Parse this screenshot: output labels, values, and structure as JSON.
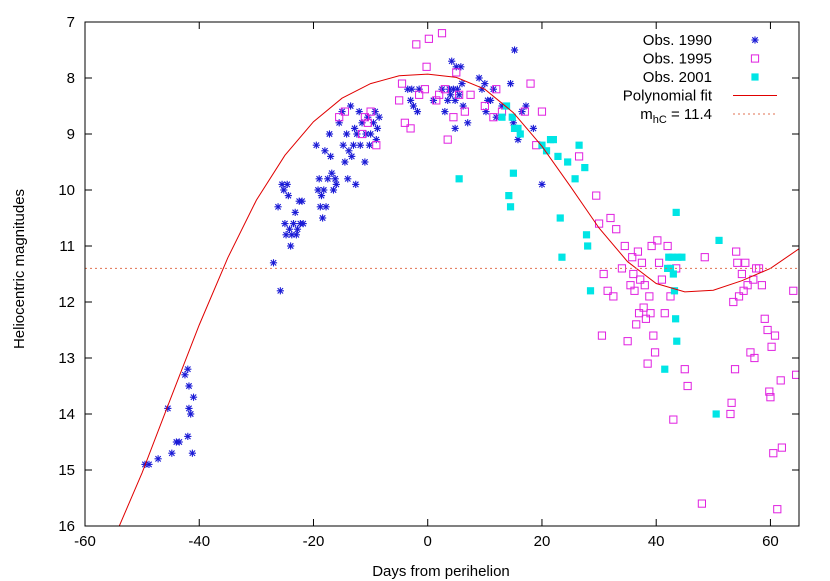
{
  "chart_data": {
    "type": "scatter",
    "title": "",
    "xlabel": "Days from perihelion",
    "ylabel": "Heliocentric magnitudes",
    "xlim": [
      -60,
      65
    ],
    "ylim": [
      16,
      7
    ],
    "y_axis_inverted": true,
    "x_ticks": [
      -60,
      -40,
      -20,
      0,
      20,
      40,
      60
    ],
    "y_ticks": [
      7,
      8,
      9,
      10,
      11,
      12,
      13,
      14,
      15,
      16
    ],
    "grid": false,
    "legend_position": "top-right",
    "legend_suffix": "hC",
    "series": [
      {
        "name": "Obs. 1990",
        "marker": "asterisk",
        "color": "#1a1ad6",
        "points": [
          [
            -49.5,
            14.9
          ],
          [
            -48.8,
            14.9
          ],
          [
            -47.2,
            14.8
          ],
          [
            -45.5,
            13.9
          ],
          [
            -44.8,
            14.7
          ],
          [
            -44.0,
            14.5
          ],
          [
            -43.5,
            14.5
          ],
          [
            -42.5,
            13.3
          ],
          [
            -42.0,
            13.2
          ],
          [
            -42.0,
            14.4
          ],
          [
            -41.8,
            13.5
          ],
          [
            -41.8,
            13.9
          ],
          [
            -41.5,
            14.0
          ],
          [
            -41.2,
            14.7
          ],
          [
            -41.0,
            13.7
          ],
          [
            -27.0,
            11.3
          ],
          [
            -26.2,
            10.3
          ],
          [
            -25.8,
            11.8
          ],
          [
            -25.5,
            9.9
          ],
          [
            -25.2,
            10.0
          ],
          [
            -25.0,
            10.6
          ],
          [
            -24.8,
            10.8
          ],
          [
            -24.6,
            9.9
          ],
          [
            -24.4,
            10.1
          ],
          [
            -24.2,
            10.7
          ],
          [
            -24.0,
            11.0
          ],
          [
            -23.8,
            10.8
          ],
          [
            -23.5,
            10.6
          ],
          [
            -23.2,
            10.4
          ],
          [
            -23.0,
            10.8
          ],
          [
            -22.8,
            10.7
          ],
          [
            -22.5,
            10.2
          ],
          [
            -22.3,
            10.6
          ],
          [
            -22.0,
            10.2
          ],
          [
            -21.8,
            10.6
          ],
          [
            -19.5,
            9.2
          ],
          [
            -19.2,
            10.0
          ],
          [
            -19.0,
            9.8
          ],
          [
            -18.8,
            10.3
          ],
          [
            -18.6,
            10.1
          ],
          [
            -18.4,
            10.5
          ],
          [
            -18.2,
            10.0
          ],
          [
            -18.0,
            9.3
          ],
          [
            -17.8,
            10.3
          ],
          [
            -17.5,
            9.8
          ],
          [
            -17.2,
            9.0
          ],
          [
            -17.0,
            9.4
          ],
          [
            -16.8,
            9.7
          ],
          [
            -16.5,
            10.0
          ],
          [
            -16.2,
            9.8
          ],
          [
            -16.0,
            9.9
          ],
          [
            -15.5,
            8.8
          ],
          [
            -15.0,
            8.6
          ],
          [
            -14.8,
            9.2
          ],
          [
            -14.5,
            9.5
          ],
          [
            -14.2,
            9.0
          ],
          [
            -14.0,
            9.8
          ],
          [
            -13.8,
            9.3
          ],
          [
            -13.5,
            8.5
          ],
          [
            -13.3,
            9.4
          ],
          [
            -13.0,
            9.2
          ],
          [
            -12.8,
            8.9
          ],
          [
            -12.6,
            9.9
          ],
          [
            -12.4,
            9.0
          ],
          [
            -12.0,
            8.6
          ],
          [
            -11.8,
            9.2
          ],
          [
            -11.5,
            8.8
          ],
          [
            -11.0,
            9.5
          ],
          [
            -10.8,
            9.0
          ],
          [
            -10.5,
            8.7
          ],
          [
            -10.2,
            9.2
          ],
          [
            -10.0,
            9.0
          ],
          [
            -9.5,
            8.8
          ],
          [
            -9.2,
            8.6
          ],
          [
            -9.0,
            9.1
          ],
          [
            -8.8,
            8.9
          ],
          [
            -8.5,
            8.7
          ],
          [
            -3.5,
            8.2
          ],
          [
            -3.0,
            8.4
          ],
          [
            -2.8,
            8.2
          ],
          [
            -2.5,
            8.5
          ],
          [
            -1.8,
            8.6
          ],
          [
            -1.5,
            8.2
          ],
          [
            1.0,
            8.4
          ],
          [
            2.5,
            8.2
          ],
          [
            3.0,
            8.6
          ],
          [
            3.5,
            8.4
          ],
          [
            3.8,
            8.2
          ],
          [
            4.0,
            8.3
          ],
          [
            4.2,
            7.7
          ],
          [
            4.5,
            8.2
          ],
          [
            4.8,
            8.4
          ],
          [
            5.0,
            7.8
          ],
          [
            5.2,
            8.2
          ],
          [
            5.5,
            8.3
          ],
          [
            5.8,
            7.8
          ],
          [
            6.0,
            8.1
          ],
          [
            6.2,
            8.5
          ],
          [
            7.0,
            8.8
          ],
          [
            4.8,
            8.9
          ],
          [
            9.0,
            8.0
          ],
          [
            9.5,
            8.2
          ],
          [
            10.0,
            8.1
          ],
          [
            10.2,
            8.6
          ],
          [
            10.5,
            8.4
          ],
          [
            11.0,
            8.4
          ],
          [
            11.5,
            8.2
          ],
          [
            12.0,
            8.7
          ],
          [
            13.0,
            8.5
          ],
          [
            14.5,
            8.1
          ],
          [
            15.0,
            8.8
          ],
          [
            15.2,
            7.5
          ],
          [
            15.5,
            8.9
          ],
          [
            15.8,
            9.1
          ],
          [
            16.5,
            8.6
          ],
          [
            17.2,
            8.5
          ],
          [
            18.5,
            8.9
          ],
          [
            20.0,
            9.9
          ]
        ]
      },
      {
        "name": "Obs. 1995",
        "marker": "open-square",
        "color": "#e020e0",
        "points": [
          [
            -15.5,
            8.7
          ],
          [
            -14.5,
            8.6
          ],
          [
            -11.5,
            9.0
          ],
          [
            -11.0,
            8.7
          ],
          [
            -10.5,
            8.8
          ],
          [
            -10.0,
            8.6
          ],
          [
            -9.0,
            9.2
          ],
          [
            -5.0,
            8.4
          ],
          [
            -4.5,
            8.1
          ],
          [
            -4.0,
            8.8
          ],
          [
            -3.0,
            8.9
          ],
          [
            -2.0,
            7.4
          ],
          [
            -1.5,
            8.3
          ],
          [
            -0.5,
            8.2
          ],
          [
            -0.2,
            7.8
          ],
          [
            0.2,
            7.3
          ],
          [
            1.5,
            8.4
          ],
          [
            2.0,
            8.3
          ],
          [
            2.5,
            7.2
          ],
          [
            3.0,
            8.2
          ],
          [
            3.5,
            9.1
          ],
          [
            4.5,
            8.7
          ],
          [
            5.0,
            7.9
          ],
          [
            5.5,
            8.3
          ],
          [
            6.5,
            8.6
          ],
          [
            7.5,
            8.3
          ],
          [
            10.0,
            8.5
          ],
          [
            11.5,
            8.7
          ],
          [
            12.0,
            8.2
          ],
          [
            13.0,
            8.6
          ],
          [
            17.0,
            8.6
          ],
          [
            18.0,
            8.1
          ],
          [
            19.0,
            9.2
          ],
          [
            20.0,
            8.6
          ],
          [
            26.5,
            9.4
          ],
          [
            29.5,
            10.1
          ],
          [
            30.0,
            10.6
          ],
          [
            30.5,
            12.6
          ],
          [
            30.8,
            11.5
          ],
          [
            31.5,
            11.8
          ],
          [
            32.0,
            10.5
          ],
          [
            32.5,
            11.9
          ],
          [
            33.0,
            10.7
          ],
          [
            34.0,
            11.4
          ],
          [
            34.5,
            11.0
          ],
          [
            35.0,
            12.7
          ],
          [
            35.5,
            11.7
          ],
          [
            35.8,
            11.2
          ],
          [
            36.0,
            11.5
          ],
          [
            36.2,
            11.8
          ],
          [
            36.5,
            12.4
          ],
          [
            36.8,
            11.1
          ],
          [
            37.0,
            12.2
          ],
          [
            37.2,
            11.6
          ],
          [
            37.5,
            11.3
          ],
          [
            37.8,
            12.1
          ],
          [
            38.0,
            11.7
          ],
          [
            38.2,
            12.3
          ],
          [
            38.5,
            13.1
          ],
          [
            38.8,
            11.9
          ],
          [
            39.0,
            12.2
          ],
          [
            39.2,
            11.0
          ],
          [
            39.5,
            12.6
          ],
          [
            39.8,
            12.9
          ],
          [
            40.2,
            10.9
          ],
          [
            40.5,
            11.3
          ],
          [
            41.0,
            11.6
          ],
          [
            41.5,
            12.2
          ],
          [
            42.0,
            11.0
          ],
          [
            42.5,
            11.9
          ],
          [
            43.0,
            14.1
          ],
          [
            43.5,
            11.4
          ],
          [
            45.0,
            13.2
          ],
          [
            45.5,
            13.5
          ],
          [
            48.0,
            15.6
          ],
          [
            48.5,
            11.2
          ],
          [
            53.0,
            14.0
          ],
          [
            53.2,
            13.8
          ],
          [
            53.5,
            12.0
          ],
          [
            53.8,
            13.2
          ],
          [
            54.0,
            11.1
          ],
          [
            54.2,
            11.3
          ],
          [
            54.5,
            11.9
          ],
          [
            55.0,
            11.5
          ],
          [
            55.3,
            11.8
          ],
          [
            55.6,
            11.3
          ],
          [
            56.0,
            11.7
          ],
          [
            56.5,
            12.9
          ],
          [
            57.0,
            11.6
          ],
          [
            57.2,
            13.0
          ],
          [
            57.5,
            11.4
          ],
          [
            58.0,
            11.4
          ],
          [
            58.5,
            11.7
          ],
          [
            59.0,
            12.3
          ],
          [
            59.5,
            12.5
          ],
          [
            59.8,
            13.6
          ],
          [
            60.0,
            13.7
          ],
          [
            60.2,
            12.8
          ],
          [
            60.5,
            14.7
          ],
          [
            60.8,
            12.6
          ],
          [
            61.2,
            15.7
          ],
          [
            61.8,
            13.4
          ],
          [
            62.0,
            14.6
          ],
          [
            64.0,
            11.8
          ],
          [
            64.5,
            13.3
          ]
        ]
      },
      {
        "name": "Obs. 2001",
        "marker": "filled-square",
        "color": "#00e5e5",
        "points": [
          [
            5.5,
            9.8
          ],
          [
            13.0,
            8.7
          ],
          [
            13.8,
            8.5
          ],
          [
            14.2,
            10.1
          ],
          [
            14.5,
            10.3
          ],
          [
            14.8,
            8.7
          ],
          [
            15.0,
            9.7
          ],
          [
            15.2,
            8.9
          ],
          [
            15.8,
            8.9
          ],
          [
            16.2,
            9.0
          ],
          [
            20.0,
            9.2
          ],
          [
            20.8,
            9.3
          ],
          [
            21.5,
            9.1
          ],
          [
            22.0,
            9.1
          ],
          [
            22.8,
            9.4
          ],
          [
            23.2,
            10.5
          ],
          [
            23.5,
            11.2
          ],
          [
            24.5,
            9.5
          ],
          [
            25.8,
            9.8
          ],
          [
            26.5,
            9.2
          ],
          [
            27.5,
            9.6
          ],
          [
            27.8,
            10.8
          ],
          [
            28.0,
            11.0
          ],
          [
            28.5,
            11.8
          ],
          [
            41.5,
            13.2
          ],
          [
            42.0,
            11.4
          ],
          [
            42.2,
            11.2
          ],
          [
            42.5,
            11.4
          ],
          [
            42.8,
            11.2
          ],
          [
            43.0,
            11.5
          ],
          [
            43.2,
            11.8
          ],
          [
            43.4,
            12.3
          ],
          [
            43.5,
            10.4
          ],
          [
            43.6,
            12.7
          ],
          [
            43.8,
            11.2
          ],
          [
            44.5,
            11.2
          ],
          [
            50.5,
            14.0
          ],
          [
            51.0,
            10.9
          ]
        ]
      },
      {
        "name": "Polynomial fit",
        "type": "line",
        "color": "#e00000",
        "dashed": false,
        "points": [
          [
            -54,
            16.0
          ],
          [
            -50,
            15.05
          ],
          [
            -45,
            13.72
          ],
          [
            -40,
            12.41
          ],
          [
            -35,
            11.21
          ],
          [
            -30,
            10.18
          ],
          [
            -25,
            9.38
          ],
          [
            -20,
            8.78
          ],
          [
            -15,
            8.36
          ],
          [
            -10,
            8.1
          ],
          [
            -5,
            7.96
          ],
          [
            0,
            7.93
          ],
          [
            5,
            7.99
          ],
          [
            10,
            8.2
          ],
          [
            15,
            8.62
          ],
          [
            20,
            9.22
          ],
          [
            25,
            9.94
          ],
          [
            30,
            10.68
          ],
          [
            35,
            11.28
          ],
          [
            40,
            11.67
          ],
          [
            45,
            11.82
          ],
          [
            50,
            11.79
          ],
          [
            55,
            11.62
          ],
          [
            60,
            11.4
          ],
          [
            65,
            11.05
          ]
        ]
      },
      {
        "name": "m",
        "type": "hline",
        "y": 11.4,
        "value_label": "= 11.4",
        "color": "#e07050",
        "dashed": true
      }
    ]
  }
}
